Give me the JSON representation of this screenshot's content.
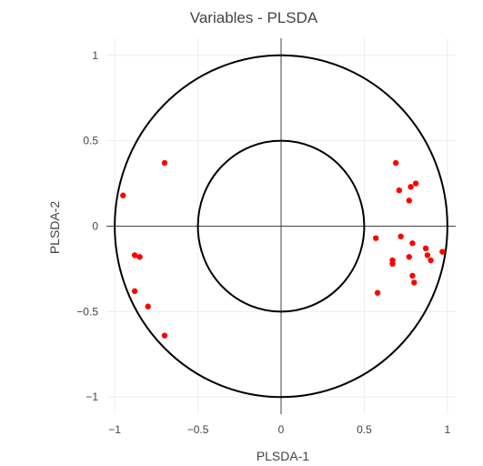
{
  "chart_data": {
    "type": "scatter",
    "title": "Variables - PLSDA",
    "xlabel": "PLSDA-1",
    "ylabel": "PLSDA-2",
    "xlim": [
      -1.05,
      1.05
    ],
    "ylim": [
      -1.1,
      1.1
    ],
    "x_ticks": [
      -1,
      -0.5,
      0,
      0.5,
      1
    ],
    "x_tick_labels": [
      "−1",
      "−0.5",
      "0",
      "0.5",
      "1"
    ],
    "y_ticks": [
      -1,
      -0.5,
      0,
      0.5,
      1
    ],
    "y_tick_labels": [
      "−1",
      "−0.5",
      "0",
      "0.5",
      "1"
    ],
    "grid": true,
    "circles": [
      {
        "radius": 1.0,
        "color": "#000000"
      },
      {
        "radius": 0.5,
        "color": "#000000"
      }
    ],
    "series": [
      {
        "color": "#ff0000",
        "points": [
          {
            "x": -0.95,
            "y": 0.18
          },
          {
            "x": -0.7,
            "y": 0.37
          },
          {
            "x": -0.88,
            "y": -0.17
          },
          {
            "x": -0.85,
            "y": -0.18
          },
          {
            "x": -0.88,
            "y": -0.38
          },
          {
            "x": -0.8,
            "y": -0.47
          },
          {
            "x": -0.7,
            "y": -0.64
          },
          {
            "x": 0.69,
            "y": 0.37
          },
          {
            "x": 0.71,
            "y": 0.21
          },
          {
            "x": 0.77,
            "y": 0.15
          },
          {
            "x": 0.78,
            "y": 0.23
          },
          {
            "x": 0.81,
            "y": 0.25
          },
          {
            "x": 0.57,
            "y": -0.07
          },
          {
            "x": 0.72,
            "y": -0.06
          },
          {
            "x": 0.79,
            "y": -0.1
          },
          {
            "x": 0.67,
            "y": -0.2
          },
          {
            "x": 0.67,
            "y": -0.22
          },
          {
            "x": 0.77,
            "y": -0.18
          },
          {
            "x": 0.87,
            "y": -0.13
          },
          {
            "x": 0.88,
            "y": -0.17
          },
          {
            "x": 0.9,
            "y": -0.2
          },
          {
            "x": 0.97,
            "y": -0.15
          },
          {
            "x": 0.79,
            "y": -0.29
          },
          {
            "x": 0.8,
            "y": -0.33
          },
          {
            "x": 0.58,
            "y": -0.39
          }
        ]
      }
    ]
  }
}
